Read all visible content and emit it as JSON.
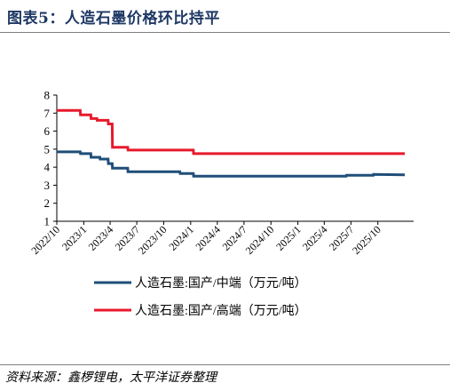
{
  "header": {
    "title": "图表5：人造石墨价格环比持平"
  },
  "footer": {
    "source": "资料来源：鑫椤锂电，太平洋证券整理"
  },
  "chart_data": {
    "type": "line",
    "ylim": [
      1,
      8
    ],
    "yticks": [
      "1",
      "2",
      "3",
      "4",
      "5",
      "6",
      "7",
      "8"
    ],
    "xlim": [
      "2022-10-01",
      "2026-01-31"
    ],
    "xticks": [
      {
        "label": "2022/10",
        "date": "2022-10-01"
      },
      {
        "label": "2023/1",
        "date": "2023-01-01"
      },
      {
        "label": "2023/4",
        "date": "2023-04-01"
      },
      {
        "label": "2023/7",
        "date": "2023-07-01"
      },
      {
        "label": "2023/10",
        "date": "2023-10-01"
      },
      {
        "label": "2024/1",
        "date": "2024-01-01"
      },
      {
        "label": "2024/4",
        "date": "2024-04-01"
      },
      {
        "label": "2024/7",
        "date": "2024-07-01"
      },
      {
        "label": "2024/10",
        "date": "2024-10-01"
      },
      {
        "label": "2025/1",
        "date": "2025-01-01"
      },
      {
        "label": "2025/4",
        "date": "2025-04-01"
      },
      {
        "label": "2025/7",
        "date": "2025-07-01"
      },
      {
        "label": "2025/10",
        "date": "2025-10-01"
      }
    ],
    "grid": false,
    "legend_position": "bottom",
    "series": [
      {
        "name": "人造石墨:国产/中端（万元/吨）",
        "color": "#1F4E79",
        "points": [
          [
            "2022-10-01",
            4.85
          ],
          [
            "2022-12-20",
            4.85
          ],
          [
            "2022-12-21",
            4.75
          ],
          [
            "2023-01-25",
            4.75
          ],
          [
            "2023-01-26",
            4.55
          ],
          [
            "2023-02-25",
            4.55
          ],
          [
            "2023-02-26",
            4.45
          ],
          [
            "2023-03-25",
            4.45
          ],
          [
            "2023-03-26",
            4.2
          ],
          [
            "2023-04-08",
            4.2
          ],
          [
            "2023-04-09",
            3.95
          ],
          [
            "2023-05-31",
            3.95
          ],
          [
            "2023-06-01",
            3.75
          ],
          [
            "2023-11-25",
            3.75
          ],
          [
            "2023-11-26",
            3.65
          ],
          [
            "2024-01-10",
            3.65
          ],
          [
            "2024-01-11",
            3.5
          ],
          [
            "2025-06-15",
            3.5
          ],
          [
            "2025-06-16",
            3.55
          ],
          [
            "2025-09-15",
            3.55
          ],
          [
            "2025-09-16",
            3.6
          ],
          [
            "2026-01-01",
            3.58
          ]
        ]
      },
      {
        "name": "人造石墨:国产/高端（万元/吨）",
        "color": "#E8192C",
        "points": [
          [
            "2022-10-01",
            7.15
          ],
          [
            "2022-12-20",
            7.15
          ],
          [
            "2022-12-21",
            6.9
          ],
          [
            "2023-01-25",
            6.9
          ],
          [
            "2023-01-26",
            6.7
          ],
          [
            "2023-02-15",
            6.7
          ],
          [
            "2023-02-16",
            6.6
          ],
          [
            "2023-03-25",
            6.6
          ],
          [
            "2023-03-26",
            6.4
          ],
          [
            "2023-04-08",
            6.4
          ],
          [
            "2023-04-09",
            5.1
          ],
          [
            "2023-05-31",
            5.1
          ],
          [
            "2023-06-01",
            4.95
          ],
          [
            "2024-01-10",
            4.95
          ],
          [
            "2024-01-11",
            4.75
          ],
          [
            "2026-01-01",
            4.75
          ]
        ]
      }
    ]
  }
}
